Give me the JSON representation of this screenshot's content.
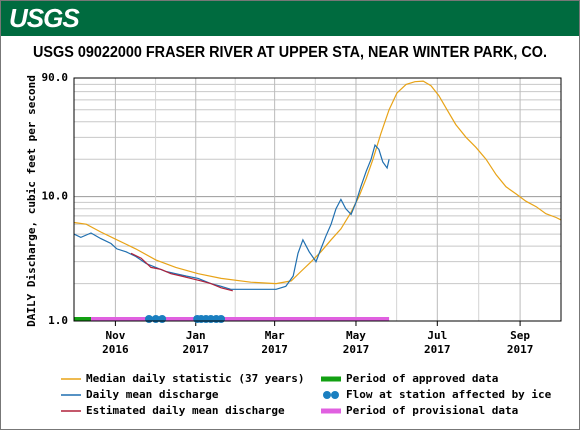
{
  "header": {
    "logo": "USGS"
  },
  "chart_data": {
    "type": "line",
    "title": "USGS 09022000 FRASER RIVER AT UPPER STA, NEAR WINTER PARK, CO.",
    "y_label": "DAILY Discharge, cubic feet per second",
    "log_y": true,
    "grid": true,
    "ylim": [
      1,
      90
    ],
    "yticks": [
      {
        "value": 1,
        "label": "1.0"
      },
      {
        "value": 10,
        "label": "10.0"
      },
      {
        "value": 90,
        "label": "90.0"
      }
    ],
    "xlim": [
      2016.75,
      2017.75
    ],
    "xticks": [
      {
        "value": 2016.835,
        "label": "Nov\n2016"
      },
      {
        "value": 2017.0,
        "label": "Jan\n2017"
      },
      {
        "value": 2017.162,
        "label": "Mar\n2017"
      },
      {
        "value": 2017.329,
        "label": "May\n2017"
      },
      {
        "value": 2017.496,
        "label": "Jul\n2017"
      },
      {
        "value": 2017.666,
        "label": "Sep\n2017"
      }
    ],
    "series": [
      {
        "name": "Median daily statistic (37 years)",
        "color": "#e8a317",
        "x": [
          2016.75,
          2016.775,
          2016.805,
          2016.838,
          2016.877,
          2016.918,
          2016.959,
          2017.005,
          2017.052,
          2017.113,
          2017.165,
          2017.196,
          2017.216,
          2017.237,
          2017.257,
          2017.278,
          2017.298,
          2017.319,
          2017.335,
          2017.35,
          2017.364,
          2017.38,
          2017.397,
          2017.413,
          2017.432,
          2017.45,
          2017.467,
          2017.483,
          2017.499,
          2017.516,
          2017.534,
          2017.555,
          2017.575,
          2017.596,
          2017.617,
          2017.637,
          2017.658,
          2017.678,
          2017.699,
          2017.719,
          2017.74,
          2017.75
        ],
        "values": [
          6.2,
          6.0,
          5.2,
          4.5,
          3.8,
          3.1,
          2.7,
          2.4,
          2.2,
          2.05,
          2.0,
          2.1,
          2.5,
          3.0,
          3.6,
          4.5,
          5.5,
          7.5,
          10,
          14,
          20,
          32,
          50,
          68,
          80,
          84,
          85,
          78,
          65,
          50,
          38,
          30,
          25,
          20,
          15,
          12,
          10.5,
          9.2,
          8.3,
          7.3,
          6.8,
          6.5
        ]
      },
      {
        "name": "Daily mean discharge",
        "color": "#1f6fb0",
        "x": [
          2016.75,
          2016.764,
          2016.785,
          2016.805,
          2016.826,
          2016.838,
          2016.857,
          2016.877,
          2016.898,
          2016.918,
          2016.939,
          2016.959,
          2016.98,
          2017.005,
          2017.031,
          2017.052,
          2017.072,
          2017.103,
          2017.134,
          2017.165,
          2017.185,
          2017.2,
          2017.21,
          2017.22,
          2017.233,
          2017.247,
          2017.257,
          2017.267,
          2017.278,
          2017.288,
          2017.298,
          2017.308,
          2017.319,
          2017.329,
          2017.339,
          2017.35,
          2017.36,
          2017.368,
          2017.376,
          2017.384,
          2017.393,
          2017.397
        ],
        "values": [
          5.0,
          4.7,
          5.1,
          4.6,
          4.2,
          3.8,
          3.6,
          3.3,
          2.9,
          2.7,
          2.5,
          2.4,
          2.3,
          2.2,
          2.0,
          1.9,
          1.8,
          1.8,
          1.8,
          1.8,
          1.9,
          2.3,
          3.5,
          4.5,
          3.6,
          3.0,
          3.8,
          4.8,
          6.0,
          8.0,
          9.5,
          8.0,
          7.2,
          9.0,
          12,
          16,
          20,
          26,
          24,
          19,
          17,
          20
        ]
      },
      {
        "name": "Estimated daily mean discharge",
        "color": "#b0213a",
        "x": [
          2016.867,
          2016.888,
          2016.908,
          2016.929,
          2016.949,
          2016.97,
          2016.99,
          2017.011,
          2017.031,
          2017.052,
          2017.076
        ],
        "values": [
          3.5,
          3.2,
          2.7,
          2.6,
          2.4,
          2.3,
          2.2,
          2.1,
          2.0,
          1.85,
          1.75
        ]
      }
    ],
    "periods": [
      {
        "name": "Period of approved data",
        "color": "#12a012",
        "start": 2016.75,
        "end": 2016.785
      },
      {
        "name": "Period of provisional data",
        "color": "#e060e0",
        "start": 2016.785,
        "end": 2017.397
      }
    ],
    "ice": {
      "name": "Flow at station affected by ice",
      "color": "#1a7fc0",
      "x": [
        2016.904,
        2016.918,
        2016.931,
        2017.003,
        2017.011,
        2017.021,
        2017.031,
        2017.042,
        2017.052
      ]
    }
  }
}
